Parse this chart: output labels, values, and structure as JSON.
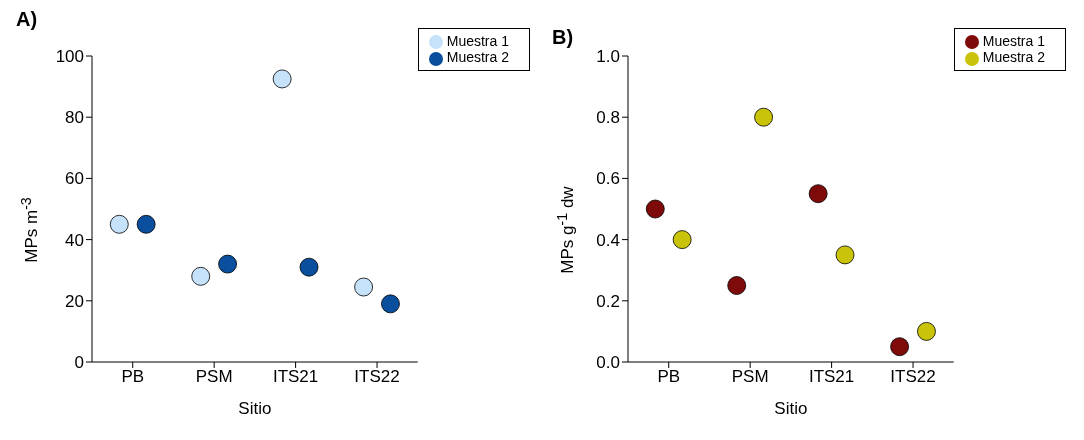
{
  "chart_data": [
    {
      "type": "scatter",
      "title": "A)",
      "xlabel": "Sitio",
      "ylabel": "MPs m$^{-3}$",
      "categories": [
        "PB",
        "PSM",
        "ITS21",
        "ITS22"
      ],
      "ylim": [
        0,
        100
      ],
      "yticks": [
        0,
        20,
        40,
        60,
        80,
        100
      ],
      "grid": false,
      "legend": "top right",
      "marker": "circle",
      "series": [
        {
          "name": "Muestra 1",
          "color": "#c6e2fb",
          "values": [
            45,
            28,
            92.5,
            24.5
          ]
        },
        {
          "name": "Muestra 2",
          "color": "#0a4f9e",
          "values": [
            45,
            32,
            31,
            19
          ]
        }
      ]
    },
    {
      "type": "scatter",
      "title": "B)",
      "xlabel": "Sitio",
      "ylabel": "MPs g$^{-1}$ dw",
      "categories": [
        "PB",
        "PSM",
        "ITS21",
        "ITS22"
      ],
      "ylim": [
        0,
        1
      ],
      "yticks": [
        {
          "value": 0,
          "label": "0.0"
        },
        {
          "value": 0.2,
          "label": "0.2"
        },
        {
          "value": 0.4,
          "label": "0.4"
        },
        {
          "value": 0.6,
          "label": "0.6"
        },
        {
          "value": 0.8,
          "label": "0.8"
        },
        {
          "value": 1,
          "label": "1.0"
        }
      ],
      "grid": false,
      "legend": "top right",
      "marker": "circle",
      "series": [
        {
          "name": "Muestra 1",
          "color": "#7f0a0a",
          "values": [
            0.5,
            0.25,
            0.55,
            0.05
          ]
        },
        {
          "name": "Muestra 2",
          "color": "#c9c40a",
          "values": [
            0.4,
            0.8,
            0.35,
            0.1
          ]
        }
      ]
    }
  ]
}
